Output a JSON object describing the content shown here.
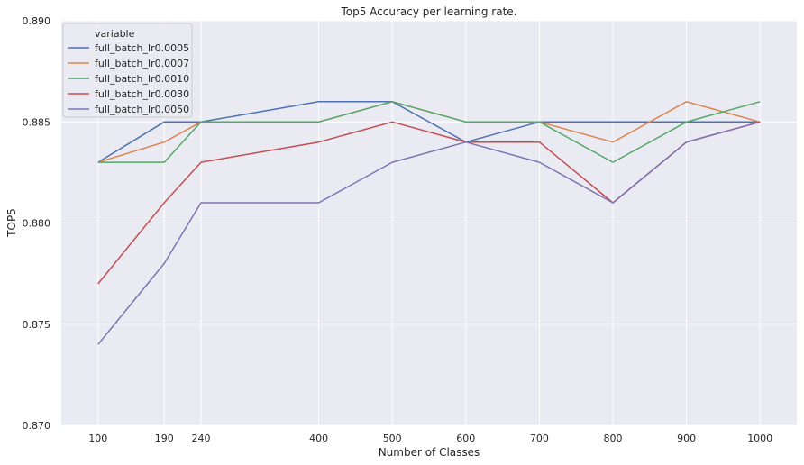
{
  "chart_data": {
    "type": "line",
    "title": "Top5 Accuracy per learning rate.",
    "xlabel": "Number of Classes",
    "ylabel": "TOP5",
    "x": [
      100,
      190,
      240,
      400,
      500,
      600,
      700,
      800,
      900,
      1000
    ],
    "x_ticks": [
      "100",
      "190",
      "240",
      "400",
      "500",
      "600",
      "700",
      "800",
      "900",
      "1000"
    ],
    "xlim": [
      50,
      1050
    ],
    "ylim": [
      0.87,
      0.89
    ],
    "y_ticks": [
      "0.870",
      "0.875",
      "0.880",
      "0.885",
      "0.890"
    ],
    "grid": true,
    "legend_title": "variable",
    "legend_position": "top-left",
    "series": [
      {
        "name": "full_batch_lr0.0005",
        "color": "#4c72b0",
        "values": [
          0.883,
          0.885,
          0.885,
          0.886,
          0.886,
          0.884,
          0.885,
          0.885,
          0.885,
          0.885
        ]
      },
      {
        "name": "full_batch_lr0.0007",
        "color": "#dd8452",
        "values": [
          0.883,
          0.884,
          0.885,
          0.885,
          0.886,
          0.885,
          0.885,
          0.884,
          0.886,
          0.885
        ]
      },
      {
        "name": "full_batch_lr0.0010",
        "color": "#55a868",
        "values": [
          0.883,
          0.883,
          0.885,
          0.885,
          0.886,
          0.885,
          0.885,
          0.883,
          0.885,
          0.886
        ]
      },
      {
        "name": "full_batch_lr0.0030",
        "color": "#c44e52",
        "values": [
          0.877,
          0.881,
          0.883,
          0.884,
          0.885,
          0.884,
          0.884,
          0.881,
          0.884,
          0.885
        ]
      },
      {
        "name": "full_batch_lr0.0050",
        "color": "#8172b3",
        "values": [
          0.874,
          0.878,
          0.881,
          0.881,
          0.883,
          0.884,
          0.883,
          0.881,
          0.884,
          0.885
        ]
      }
    ]
  }
}
